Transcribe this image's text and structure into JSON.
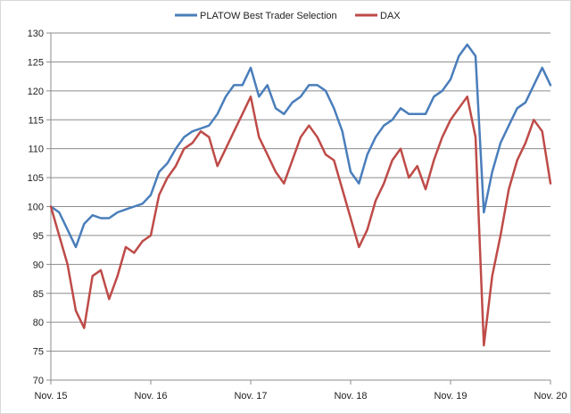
{
  "chart_data": {
    "type": "line",
    "title": "",
    "xlabel": "",
    "ylabel": "",
    "legend_position": "top",
    "grid": "horizontal",
    "ylim": [
      70,
      130
    ],
    "xlim": [
      "Nov. 15",
      "Nov. 20"
    ],
    "x_tick_labels": [
      "Nov. 15",
      "Nov. 16",
      "Nov. 17",
      "Nov. 18",
      "Nov. 19",
      "Nov. 20"
    ],
    "y_ticks": [
      70,
      75,
      80,
      85,
      90,
      95,
      100,
      105,
      110,
      115,
      120,
      125,
      130
    ],
    "x": [
      "Nov. 15",
      "Dec. 15",
      "Jan. 16",
      "Feb. 16",
      "Mar. 16",
      "Apr. 16",
      "May 16",
      "Jun. 16",
      "Jul. 16",
      "Aug. 16",
      "Sep. 16",
      "Oct. 16",
      "Nov. 16",
      "Dec. 16",
      "Jan. 17",
      "Feb. 17",
      "Mar. 17",
      "Apr. 17",
      "May 17",
      "Jun. 17",
      "Jul. 17",
      "Aug. 17",
      "Sep. 17",
      "Oct. 17",
      "Nov. 17",
      "Dec. 17",
      "Jan. 18",
      "Feb. 18",
      "Mar. 18",
      "Apr. 18",
      "May 18",
      "Jun. 18",
      "Jul. 18",
      "Aug. 18",
      "Sep. 18",
      "Oct. 18",
      "Nov. 18",
      "Dec. 18",
      "Jan. 19",
      "Feb. 19",
      "Mar. 19",
      "Apr. 19",
      "May 19",
      "Jun. 19",
      "Jul. 19",
      "Aug. 19",
      "Sep. 19",
      "Oct. 19",
      "Nov. 19",
      "Dec. 19",
      "Jan. 20",
      "Feb. 20",
      "Mar. 20",
      "Apr. 20",
      "May 20",
      "Jun. 20",
      "Jul. 20",
      "Aug. 20",
      "Sep. 20",
      "Oct. 20",
      "Nov. 20"
    ],
    "series": [
      {
        "name": "PLATOW Best Trader Selection",
        "color": "#4a7ebb",
        "values": [
          100.0,
          99.0,
          96.0,
          93.0,
          97.0,
          98.5,
          98.0,
          98.0,
          99.0,
          99.5,
          100.0,
          100.5,
          102.0,
          106.0,
          107.5,
          110.0,
          112.0,
          113.0,
          113.5,
          114.0,
          116.0,
          119.0,
          121.0,
          121.0,
          124.0,
          119.0,
          121.0,
          117.0,
          116.0,
          118.0,
          119.0,
          121.0,
          121.0,
          120.0,
          117.0,
          113.0,
          106.0,
          104.0,
          109.0,
          112.0,
          114.0,
          115.0,
          117.0,
          116.0,
          116.0,
          116.0,
          119.0,
          120.0,
          122.0,
          126.0,
          128.0,
          126.0,
          99.0,
          106.0,
          111.0,
          114.0,
          117.0,
          118.0,
          121.0,
          124.0,
          121.0
        ]
      },
      {
        "name": "DAX",
        "color": "#be4b48",
        "values": [
          100.0,
          95.0,
          90.0,
          82.0,
          79.0,
          88.0,
          89.0,
          84.0,
          88.0,
          93.0,
          92.0,
          94.0,
          95.0,
          102.0,
          105.0,
          107.0,
          110.0,
          111.0,
          113.0,
          112.0,
          107.0,
          110.0,
          113.0,
          116.0,
          119.0,
          112.0,
          109.0,
          106.0,
          104.0,
          108.0,
          112.0,
          114.0,
          112.0,
          109.0,
          108.0,
          103.0,
          98.0,
          93.0,
          96.0,
          101.0,
          104.0,
          108.0,
          110.0,
          105.0,
          107.0,
          103.0,
          108.0,
          112.0,
          115.0,
          117.0,
          119.0,
          112.0,
          76.0,
          88.0,
          95.0,
          103.0,
          108.0,
          111.0,
          115.0,
          113.0,
          104.0
        ]
      }
    ]
  },
  "legend": {
    "series1_label": "PLATOW Best Trader Selection",
    "series2_label": "DAX"
  }
}
